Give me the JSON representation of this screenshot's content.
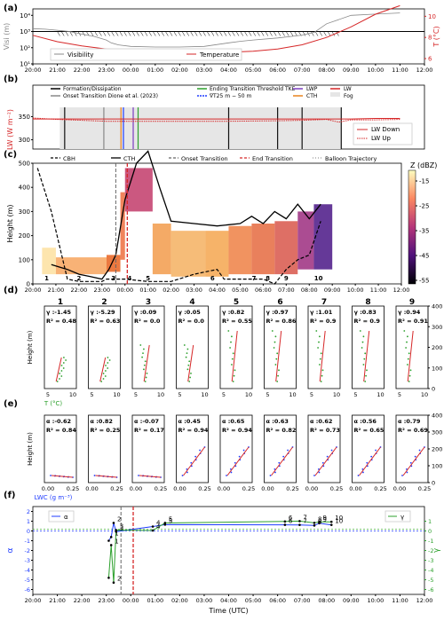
{
  "panel_labels": [
    "(a)",
    "(b)",
    "(c)",
    "(d)",
    "(e)",
    "(f)"
  ],
  "colors": {
    "red": "#d62728",
    "blue": "#1f3cff",
    "green": "#2ca02c",
    "purple": "#7a3cc0",
    "orange": "#e8821e",
    "gray": "#888888",
    "black": "#111111"
  },
  "chart_data": [
    {
      "id": "a",
      "type": "line",
      "y_left_label": "Visi (m)",
      "y_right_label": "T (°C)",
      "x_ticks": [
        "20:00",
        "21:00",
        "22:00",
        "23:00",
        "00:00",
        "01:00",
        "02:00",
        "03:00",
        "04:00",
        "05:00",
        "06:00",
        "07:00",
        "08:00",
        "09:00",
        "10:00",
        "11:00",
        "12:00"
      ],
      "y_left_ticks": [
        "10¹",
        "10²",
        "10³",
        "10⁴"
      ],
      "y_right_ticks": [
        "6",
        "8",
        "10"
      ],
      "threshold_visibility": 1000,
      "series": [
        {
          "name": "Visibility",
          "x": [
            20,
            20.5,
            21,
            21.5,
            22,
            22.5,
            23,
            23.2,
            23.5,
            24,
            25,
            26,
            27,
            28,
            28.5,
            29,
            30,
            31,
            31.5,
            32,
            33,
            34,
            35
          ],
          "values": [
            1500,
            1400,
            1200,
            1000,
            700,
            500,
            300,
            200,
            150,
            120,
            110,
            110,
            120,
            200,
            250,
            300,
            400,
            600,
            900,
            3000,
            10000,
            12000,
            14000
          ]
        },
        {
          "name": "Temperature",
          "x": [
            20,
            21,
            22,
            23,
            24,
            25,
            26,
            27,
            28,
            29,
            30,
            31,
            32,
            33,
            34,
            35
          ],
          "values": [
            8.2,
            7.6,
            7.2,
            6.9,
            6.8,
            6.7,
            6.6,
            6.6,
            6.6,
            6.7,
            6.9,
            7.3,
            8.0,
            9.0,
            10.2,
            11.0
          ]
        }
      ]
    },
    {
      "id": "b",
      "type": "line",
      "y_label": "LW (W m⁻²)",
      "y_ticks": [
        "300",
        "350"
      ],
      "ylim": [
        280,
        370
      ],
      "legend_left": [
        "Formation/Dissipation",
        "Onset Transition Dione et al. (2023)"
      ],
      "legend_mid": [
        "Ending Transition Threshold TKE",
        "∇T25 m − 50 m"
      ],
      "legend_right1": [
        "LWP",
        "CTH"
      ],
      "legend_right2": [
        "LW",
        "Fog"
      ],
      "legend_box": [
        "LW Down",
        "LW Up"
      ],
      "series": [
        {
          "name": "LW Down",
          "x": [
            20,
            21,
            22,
            23,
            24,
            26,
            28,
            30,
            31,
            32,
            32.5,
            33,
            34,
            35
          ],
          "values": [
            345,
            345,
            345,
            345,
            345,
            345,
            345,
            345,
            345,
            345,
            345,
            345,
            346,
            346
          ]
        },
        {
          "name": "LW Up",
          "x": [
            20,
            21,
            22,
            23,
            24,
            26,
            28,
            30,
            31,
            32,
            32.5,
            33,
            34,
            35
          ],
          "values": [
            347,
            344,
            342,
            340,
            340,
            340,
            340,
            341,
            342,
            344,
            338,
            343,
            343,
            344
          ]
        }
      ],
      "vlines": [
        21.3,
        22.9,
        23.6,
        23.7,
        24.1,
        24.3,
        28,
        30,
        31,
        32.6
      ]
    },
    {
      "id": "c",
      "type": "heatmap",
      "y_label": "Height (m)",
      "colorbar_label": "Z (dBZ)",
      "y_ticks": [
        "0",
        "100",
        "200",
        "300",
        "400",
        "500"
      ],
      "ylim": [
        0,
        500
      ],
      "colorbar_ticks": [
        "-15",
        "-25",
        "-35",
        "-45",
        "-55"
      ],
      "legend": [
        "CBH",
        "CTH",
        "Onset Transition",
        "End Transition",
        "Balloon Trajectory"
      ],
      "cth": {
        "x": [
          20.8,
          21.5,
          22,
          22.5,
          23,
          23.3,
          23.6,
          24,
          24.5,
          25,
          25.5,
          26,
          27,
          28,
          29,
          29.5,
          30,
          30.5,
          31,
          31.5,
          32,
          32.5
        ],
        "values": [
          80,
          60,
          40,
          30,
          20,
          60,
          120,
          350,
          500,
          550,
          400,
          260,
          250,
          240,
          250,
          280,
          250,
          300,
          270,
          330,
          270,
          330
        ]
      },
      "cbh": {
        "x": [
          20.2,
          20.8,
          21.5,
          22,
          22.5,
          23,
          23.2,
          24,
          25,
          26,
          27,
          28,
          28.3,
          29,
          30,
          30.5,
          31,
          31.5,
          32,
          32.5
        ],
        "values": [
          480,
          300,
          20,
          10,
          10,
          10,
          20,
          20,
          10,
          10,
          40,
          60,
          20,
          20,
          20,
          0,
          60,
          100,
          120,
          260
        ]
      },
      "balloon_numbers": [
        "1",
        "2",
        "3",
        "4",
        "5",
        "6",
        "7",
        "8",
        "9",
        "10"
      ],
      "balloon_times": [
        20.6,
        22.0,
        23.5,
        24.2,
        25.0,
        27.8,
        29.6,
        30.2,
        31.0,
        32.4
      ]
    },
    {
      "id": "d",
      "type": "scatter",
      "y_label": "Height (m)",
      "x_label": "T (°C)",
      "x_ticks": [
        "5",
        "10"
      ],
      "y_ticks": [
        "0",
        "100",
        "200",
        "300",
        "400"
      ],
      "profiles": [
        {
          "number": "1",
          "gamma": "-1.45",
          "r2": "0.48"
        },
        {
          "number": "2",
          "gamma": "-5.29",
          "r2": "0.63"
        },
        {
          "number": "3",
          "gamma": "0.09",
          "r2": "0.0"
        },
        {
          "number": "4",
          "gamma": "0.05",
          "r2": "0.0"
        },
        {
          "number": "5",
          "gamma": "0.82",
          "r2": "0.55"
        },
        {
          "number": "6",
          "gamma": "0.97",
          "r2": "0.86"
        },
        {
          "number": "7",
          "gamma": "1.01",
          "r2": "0.9"
        },
        {
          "number": "8",
          "gamma": "0.83",
          "r2": "0.9"
        },
        {
          "number": "9",
          "gamma": "0.94",
          "r2": "0.91"
        }
      ]
    },
    {
      "id": "e",
      "type": "scatter",
      "y_label": "Height (m)",
      "x_label": "LWC (g m⁻³)",
      "x_ticks": [
        "0.00",
        "0.25"
      ],
      "y_ticks": [
        "0",
        "100",
        "200",
        "300",
        "400"
      ],
      "profiles": [
        {
          "alpha": "-0.62",
          "r2": "0.84"
        },
        {
          "alpha": "0.82",
          "r2": "0.25"
        },
        {
          "alpha": "-0.07",
          "r2": "0.17"
        },
        {
          "alpha": "0.45",
          "r2": "0.94"
        },
        {
          "alpha": "0.65",
          "r2": "0.94"
        },
        {
          "alpha": "0.63",
          "r2": "0.82"
        },
        {
          "alpha": "0.62",
          "r2": "0.73"
        },
        {
          "alpha": "0.56",
          "r2": "0.65"
        },
        {
          "alpha": "0.79",
          "r2": "0.69"
        }
      ]
    },
    {
      "id": "f",
      "type": "line",
      "x_label": "Time (UTC)",
      "y_left_label": "α",
      "y_right_label": "γ",
      "y_left_ticks": [
        "2",
        "1",
        "0",
        "-1",
        "-2",
        "-3",
        "-4",
        "-5",
        "-6"
      ],
      "y_right_ticks": [
        "1",
        "0",
        "-1",
        "-2",
        "-3",
        "-4",
        "-5",
        "-6"
      ],
      "x_ticks": [
        "20:00",
        "21:00",
        "22:00",
        "23:00",
        "00:00",
        "01:00",
        "02:00",
        "03:00",
        "04:00",
        "05:00",
        "06:00",
        "07:00",
        "08:00",
        "09:00",
        "10:00",
        "11:00",
        "12:00"
      ],
      "series": [
        {
          "name": "α",
          "x": [
            23.1,
            23.2,
            23.3,
            23.4,
            24.9,
            25.4,
            30.3,
            30.9,
            31.5,
            31.7,
            32.2
          ],
          "values": [
            -1.0,
            -0.62,
            0.82,
            -0.07,
            0.45,
            0.65,
            0.63,
            0.62,
            0.56,
            0.79,
            0.62
          ],
          "labels": [
            "",
            "1",
            "2",
            "3",
            "4",
            "5",
            "6",
            "7",
            "8",
            "9",
            "10"
          ]
        },
        {
          "name": "γ",
          "x": [
            23.1,
            23.2,
            23.3,
            23.4,
            24.9,
            25.4,
            30.3,
            30.9,
            31.5,
            31.7,
            32.2
          ],
          "values": [
            -4.8,
            -1.45,
            -5.29,
            0.09,
            0.05,
            0.82,
            0.97,
            1.01,
            0.83,
            0.94,
            0.94
          ],
          "labels": [
            "",
            "1",
            "2",
            "3",
            "4",
            "5",
            "6",
            "7",
            "8",
            "9",
            "10"
          ]
        }
      ]
    }
  ]
}
